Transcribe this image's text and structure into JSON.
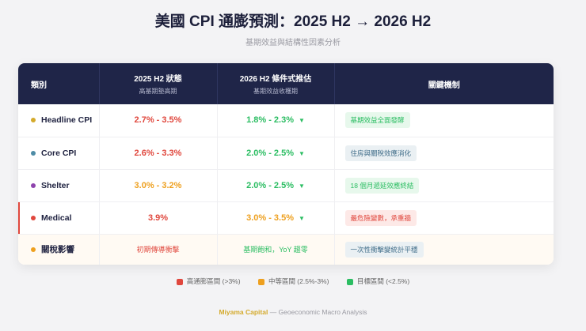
{
  "title": "美國 CPI 通膨預測：2025 H2 → 2026 H2",
  "subtitle": "基期效益與結構性因素分析",
  "table": {
    "headers": [
      {
        "label": "類別",
        "sub": ""
      },
      {
        "label": "2025 H2 狀態",
        "sub": "高基期墊高期"
      },
      {
        "label": "2026 H2 條件式推估",
        "sub": "基期效益收穫期"
      },
      {
        "label": "關鍵機制",
        "sub": ""
      }
    ],
    "rows": [
      {
        "category": "Headline CPI",
        "dot": "#d4aa2c",
        "h2025": "2.7% - 3.5%",
        "h2026": "1.8% - 2.3%",
        "arrow": "▼",
        "mechanism": "基期效益全面發酵"
      },
      {
        "category": "Core CPI",
        "dot": "#4f8ca6",
        "h2025": "2.6% - 3.3%",
        "h2026": "2.0% - 2.5%",
        "arrow": "▼",
        "mechanism": "住房與關稅效應消化"
      },
      {
        "category": "Shelter",
        "dot": "#8e44ad",
        "h2025": "3.0% - 3.2%",
        "h2026": "2.0% - 2.5%",
        "arrow": "▼",
        "mechanism": "18 個月遞延效應終結"
      },
      {
        "category": "Medical",
        "dot": "#e0473d",
        "h2025": "3.9%",
        "h2026": "3.0% - 3.5%",
        "arrow": "▼",
        "mechanism": "最危險變數，承重牆"
      },
      {
        "category": "關稅影響",
        "dot": "#eea01f",
        "h2025": "初期傳導衝擊",
        "h2026": "基期飽和，YoY 趨零",
        "mechanism": "一次性衝擊變統計平穩"
      }
    ]
  },
  "legend": [
    {
      "label": "高通膨區間 (>3%)",
      "color": "#e0473d"
    },
    {
      "label": "中等區間 (2.5%-3%)",
      "color": "#eea01f"
    },
    {
      "label": "目標區間 (<2.5%)",
      "color": "#2bbd62"
    }
  ],
  "footer": {
    "brand": "Miyama Capital",
    "text": " — Geoeconomic Macro Analysis"
  }
}
